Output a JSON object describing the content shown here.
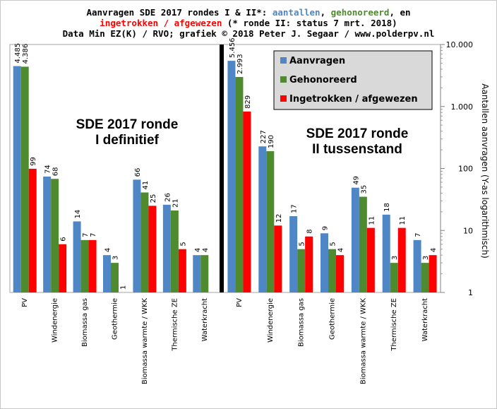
{
  "title": {
    "line1_pre": "Aanvragen SDE 2017 rondes I & II*: ",
    "line1_aantallen": "aantallen",
    "line1_sep": ", ",
    "line1_gehonoreerd": "gehonoreerd",
    "line1_post": ", en",
    "line2_ingetrokken": "ingetrokken  / afgewezen",
    "line2_post": " (* ronde II: status 7 mrt. 2018)",
    "line3": "Data Min EZ(K) / RVO; grafiek © 2018 Peter J. Segaar / www.polderpv.nl"
  },
  "colors": {
    "aanvragen": "#4f86c6",
    "gehonoreerd": "#4e8b2e",
    "ingetrokken": "#ff0000",
    "legend_bg": "#d9d9d9"
  },
  "chart_data": {
    "type": "bar",
    "yscale": "log",
    "ylim": [
      1,
      10000
    ],
    "ylabel": "Aantallen aanvragen  (Y-as logarithmisch)",
    "yticks": [
      {
        "value": 1,
        "label": "1"
      },
      {
        "value": 10,
        "label": "10"
      },
      {
        "value": 100,
        "label": "100"
      },
      {
        "value": 1000,
        "label": "1.000"
      },
      {
        "value": 10000,
        "label": "10.000"
      }
    ],
    "legend": {
      "position": "top-right",
      "entries": [
        "Aanvragen",
        "Gehonoreerd",
        "Ingetrokken / afgewezen"
      ]
    },
    "panels": [
      {
        "annotation": [
          "SDE 2017 ronde",
          "I definitief"
        ],
        "categories": [
          "PV",
          "Windenergie",
          "Biomassa gas",
          "Geothermie",
          "Biomassa warmte / WKK",
          "Thermische ZE",
          "Waterkracht"
        ],
        "series": [
          {
            "name": "Aanvragen",
            "values": [
              4485,
              74,
              14,
              4,
              66,
              26,
              4
            ],
            "labels": [
              "4.485",
              "74",
              "14",
              "4",
              "66",
              "26",
              "4"
            ]
          },
          {
            "name": "Gehonoreerd",
            "values": [
              4386,
              68,
              7,
              3,
              41,
              21,
              4
            ],
            "labels": [
              "4.386",
              "68",
              "7",
              "3",
              "41",
              "21",
              "4"
            ]
          },
          {
            "name": "Ingetrokken / afgewezen",
            "values": [
              99,
              6,
              7,
              1,
              25,
              5,
              null
            ],
            "labels": [
              "99",
              "6",
              "7",
              "1",
              "25",
              "5",
              ""
            ]
          }
        ]
      },
      {
        "annotation": [
          "SDE 2017 ronde",
          "II tussenstand"
        ],
        "categories": [
          "PV",
          "Windenergie",
          "Biomassa gas",
          "Geothermie",
          "Biomassa warmte / WKK",
          "Thermische ZE",
          "Waterkracht"
        ],
        "series": [
          {
            "name": "Aanvragen",
            "values": [
              5456,
              227,
              17,
              9,
              49,
              18,
              7
            ],
            "labels": [
              "5.456",
              "227",
              "17",
              "9",
              "49",
              "18",
              "7"
            ]
          },
          {
            "name": "Gehonoreerd",
            "values": [
              2993,
              190,
              5,
              5,
              35,
              3,
              3
            ],
            "labels": [
              "2.993",
              "190",
              "5",
              "5",
              "35",
              "3",
              "3"
            ]
          },
          {
            "name": "Ingetrokken / afgewezen",
            "values": [
              829,
              12,
              8,
              4,
              11,
              11,
              4
            ],
            "labels": [
              "829",
              "12",
              "8",
              "4",
              "11",
              "11",
              "4"
            ]
          }
        ]
      }
    ]
  }
}
